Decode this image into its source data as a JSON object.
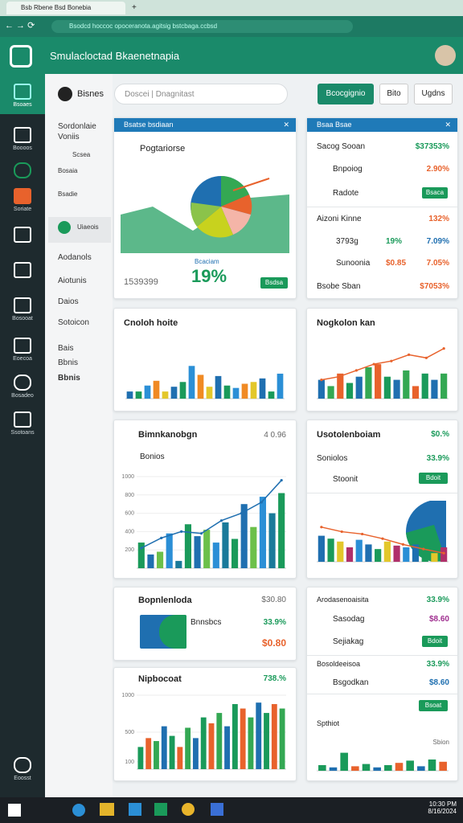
{
  "browser": {
    "tab": "Bsb Rbene Bsd Bonebia",
    "url": "Bsodcd hoccoc opoceranota.agitsig bstcbaga.ccbsd"
  },
  "app": {
    "title": "Smulacloctad Bkaenetnapia"
  },
  "sidebar": {
    "items": [
      "Bsoaes",
      "Boooos",
      "Soriate",
      "Bosooat",
      "Eoecoa",
      "Bosadeo",
      "Ssotoans",
      "Eoosst"
    ]
  },
  "nav": {
    "heading": "Sordonlaie",
    "sub": "Voniis",
    "items": [
      "Scsea",
      "Bosaia",
      "Bsadie",
      "Uiaeois",
      "Aodanols",
      "Aiotunis",
      "Daios",
      "Sotoicon",
      "Bais",
      "Bbnis"
    ]
  },
  "topbar": {
    "brand": "Bisnes",
    "search": "Doscei | Dnagnitast",
    "buttons": [
      "Bcocgignio",
      "Bito",
      "Ugdns"
    ]
  },
  "cards": {
    "a": {
      "header": "Bsatse bsdiaan",
      "title": "Pogtariorse",
      "caption": "Bcaciam",
      "big": "19%",
      "number": "1539399",
      "button": "Bsdsa"
    },
    "b": {
      "header": "Bsaa Bsae",
      "rows": [
        [
          "Sacog Sooan",
          "$37353%"
        ],
        [
          "Bnpoiog",
          "2.90%"
        ],
        [
          "Radote",
          "Bsaca"
        ],
        [
          "Aizoni Kinne",
          "132%"
        ],
        [
          "3793g",
          "19%",
          "7.09%"
        ],
        [
          "Sunoonia",
          "$0.85",
          "7.05%"
        ],
        [
          "Bsobe Sban",
          "$7053%"
        ]
      ]
    },
    "c": {
      "title": "Cnoloh hoite",
      "chart": {
        "ylim": [
          0,
          100
        ],
        "palette": [
          "#1f6fb0",
          "#1a9a5a",
          "#2b8fd6",
          "#f08a24",
          "#e3c72b"
        ],
        "values": [
          12,
          12,
          22,
          30,
          12,
          20,
          28,
          55,
          40,
          20,
          38,
          22,
          18,
          25,
          28,
          34,
          12,
          42
        ]
      }
    },
    "d": {
      "title": "Nogkolon kan",
      "chart": {
        "ylim": [
          0,
          100
        ],
        "palette": [
          "#1f6fb0",
          "#34a853",
          "#e8622c",
          "#1a9a5a"
        ],
        "values": [
          30,
          20,
          40,
          25,
          35,
          50,
          55,
          35,
          30,
          45,
          20,
          40,
          30,
          40
        ],
        "line": [
          30,
          35,
          45,
          55,
          60,
          70,
          65,
          80
        ],
        "line_color": "#e8622c"
      }
    },
    "e": {
      "title": "Bimnkanobgn",
      "meta": "4 0.96",
      "sub": "Bonios",
      "chart": {
        "ylim": [
          0,
          1000
        ],
        "yticks": [
          200,
          400,
          600,
          800,
          1000
        ],
        "palette": [
          "#1a9a5a",
          "#1f6fb0",
          "#6cc04a",
          "#2b8fd6",
          "#1a7a9a"
        ],
        "values": [
          280,
          150,
          180,
          380,
          80,
          480,
          350,
          420,
          280,
          500,
          320,
          700,
          450,
          780,
          600,
          820
        ],
        "line": [
          220,
          330,
          400,
          380,
          520,
          600,
          720,
          960
        ],
        "line_color": "#1f6fb0"
      }
    },
    "f": {
      "title": "Usotolenboiam",
      "value": "$0.%",
      "rows": [
        [
          "Soniolos",
          "33.9%"
        ],
        [
          "Stoonit",
          "Bdoit"
        ]
      ],
      "chart": {
        "ylim": [
          0,
          100
        ],
        "palette": [
          "#1f6fb0",
          "#1a9a5a",
          "#e3c72b",
          "#b0306a",
          "#2b8fd6"
        ],
        "values": [
          45,
          40,
          35,
          25,
          38,
          30,
          22,
          35,
          28,
          25,
          30,
          20,
          15,
          25
        ],
        "line": [
          60,
          52,
          48,
          40,
          30,
          22,
          15
        ],
        "line_color": "#e8622c"
      }
    },
    "g": {
      "title": "Bopnlenloda",
      "value": "$30.80",
      "label": "Bnnsbcs",
      "pct": "33.9%",
      "amount": "$0.80"
    },
    "h": {
      "title": "Nipbocoat",
      "value": "738.%",
      "chart": {
        "ylim": [
          0,
          1000
        ],
        "yticks": [
          100,
          500,
          1000
        ],
        "palette": [
          "#1a9a5a",
          "#e8622c",
          "#34a853",
          "#1f6fb0"
        ],
        "values": [
          300,
          420,
          380,
          580,
          450,
          300,
          560,
          420,
          700,
          620,
          760,
          580,
          880,
          820,
          700,
          900,
          760,
          880,
          820
        ]
      }
    },
    "i": {
      "title": "Arodasenoaisita",
      "value": "33.9%",
      "rows": [
        [
          "Sasodag",
          "$8.60"
        ],
        [
          "Sejiakag",
          "Bdoit"
        ],
        [
          "Bosoldeeisoa",
          "33.9%"
        ],
        [
          "Bsgodkan",
          "$8.60"
        ]
      ],
      "button": "Bsoat",
      "label": "Spthiot",
      "note": "Sbion",
      "chart": {
        "ylim": [
          0,
          100
        ],
        "palette": [
          "#1a9a5a",
          "#1f6fb0",
          "#1a9a5a",
          "#e8622c"
        ],
        "values": [
          25,
          15,
          80,
          20,
          30,
          15,
          25,
          35,
          45,
          20,
          50,
          40
        ]
      }
    }
  },
  "taskbar": {
    "time": "10:30 PM",
    "date": "8/16/2024"
  }
}
